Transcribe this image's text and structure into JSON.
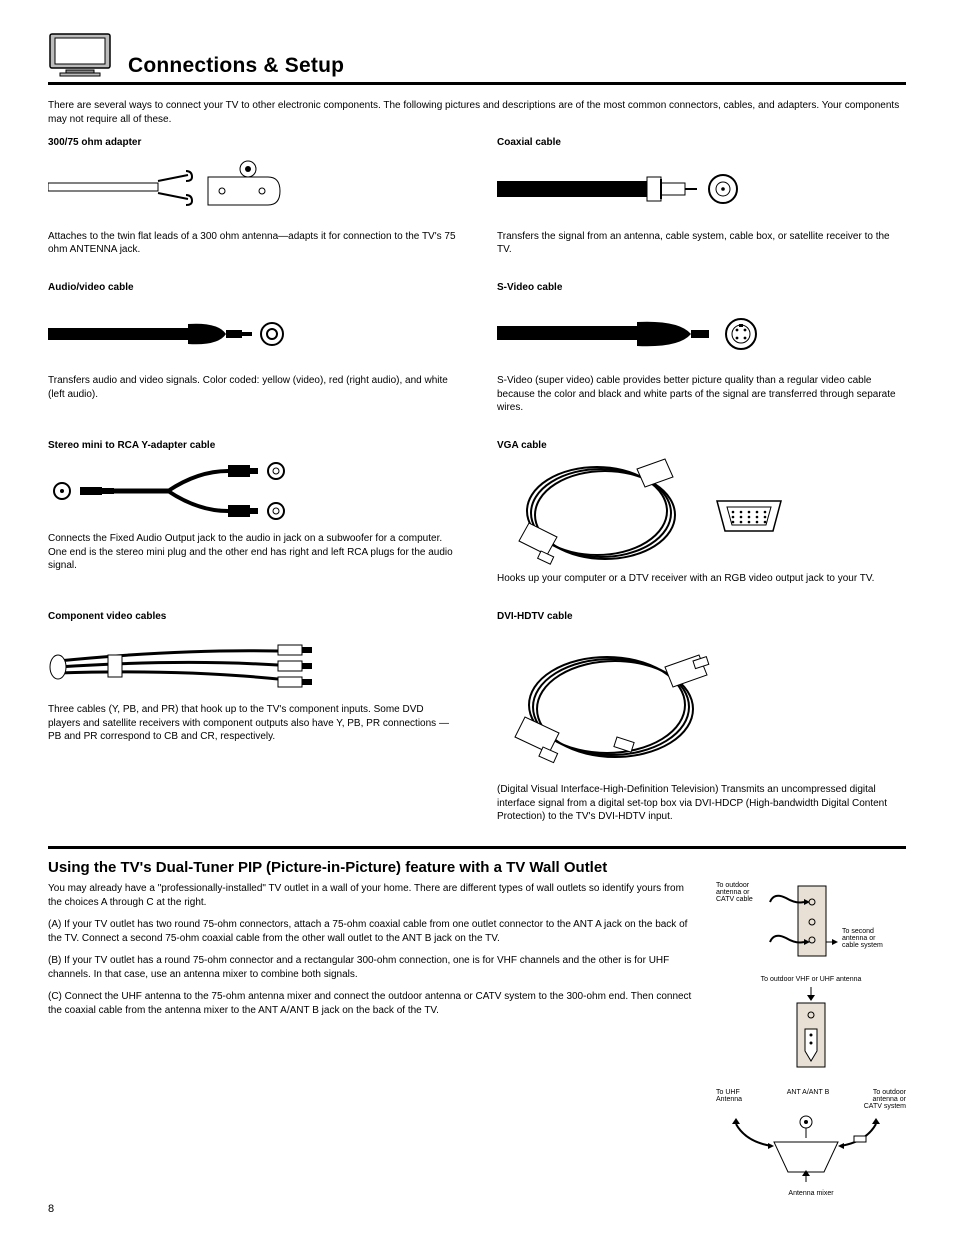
{
  "header": {
    "title": "Connections & Setup"
  },
  "cablesIntro": "There are several ways to connect your TV to other electronic components. The following pictures and descriptions are of the most common connectors, cables, and adapters. Your components may not require all of these.",
  "cables": {
    "left": [
      {
        "label": "300/75 ohm adapter",
        "desc": "Attaches to the twin flat leads of a 300 ohm antenna—adapts it for connection to the TV's 75 ohm ANTENNA jack.",
        "illus": "adapter"
      },
      {
        "label": "Audio/video cable",
        "desc": "Transfers audio and video signals. Color coded: yellow (video), red (right audio), and white (left audio).",
        "illus": "rca"
      },
      {
        "label": "Stereo mini to RCA Y-adapter cable",
        "desc": "Connects the Fixed Audio Output jack to the audio in jack on a subwoofer for a computer. One end is the stereo mini plug and the other end has right and left RCA plugs for the audio signal.",
        "illus": "yadapter"
      },
      {
        "label": "Component video cables",
        "desc": "Three cables (Y, PB, and PR) that hook up to the TV's component inputs. Some DVD players and satellite receivers with component outputs also have Y, PB, PR connections — PB and PR correspond to CB and CR, respectively.",
        "illus": "component"
      }
    ],
    "right": [
      {
        "label": "Coaxial cable",
        "desc": "Transfers the signal from an antenna, cable system, cable box, or satellite receiver to the TV.",
        "illus": "coax"
      },
      {
        "label": "S-Video cable",
        "desc": "S-Video (super video) cable provides better picture quality than a regular video cable because the color and black and white parts of the signal are transferred through separate wires.",
        "illus": "svideo"
      },
      {
        "label": "VGA cable",
        "desc": "Hooks up your computer or a DTV receiver with an RGB video output jack to your TV.",
        "illus": "vga"
      },
      {
        "label": "DVI-HDTV cable",
        "desc": "(Digital Visual Interface-High-Definition Television) Transmits an uncompressed digital interface signal from a digital set-top box via DVI-HDCP (High-bandwidth Digital Content Protection) to the TV's DVI-HDTV input.",
        "illus": "dvi"
      }
    ]
  },
  "wallOutlet": {
    "title": "Using the TV's Dual-Tuner PIP (Picture-in-Picture) feature with a TV Wall Outlet",
    "p1": "You may already have a \"professionally-installed\" TV outlet in a wall of your home. There are different types of wall outlets so identify yours from the choices A through C at the right.",
    "p2": "(A) If your TV outlet has two round 75-ohm connectors, attach a 75-ohm coaxial cable from one outlet connector to the ANT A jack on the back of the TV. Connect a second 75-ohm coaxial cable from the other wall outlet to the ANT B jack on the TV.",
    "p3": "(B) If your TV outlet has a round 75-ohm connector and a rectangular 300-ohm connection, one is for VHF channels and the other is for UHF channels. In that case, use an antenna mixer to combine both signals.",
    "p4": "(C) Connect the UHF antenna to the 75-ohm antenna mixer and connect the outdoor antenna or CATV system to the 300-ohm end. Then connect the coaxial cable from the antenna mixer to the ANT A/ANT B jack on the back of the TV.",
    "figLabels": {
      "a_left": "To outdoor antenna or CATV cable",
      "a_right": "To second antenna or cable system",
      "b_top": "To outdoor VHF or UHF antenna",
      "c_left": "To UHF Antenna",
      "c_mid": "ANT A/ANT B",
      "c_right": "To outdoor antenna or CATV system",
      "c_bottom": "Antenna mixer"
    }
  },
  "pageNumber": 8,
  "style": {
    "ruleWeight": 3,
    "bodyFont": 10,
    "titleFont": 21,
    "sectionTitleFont": 15
  }
}
